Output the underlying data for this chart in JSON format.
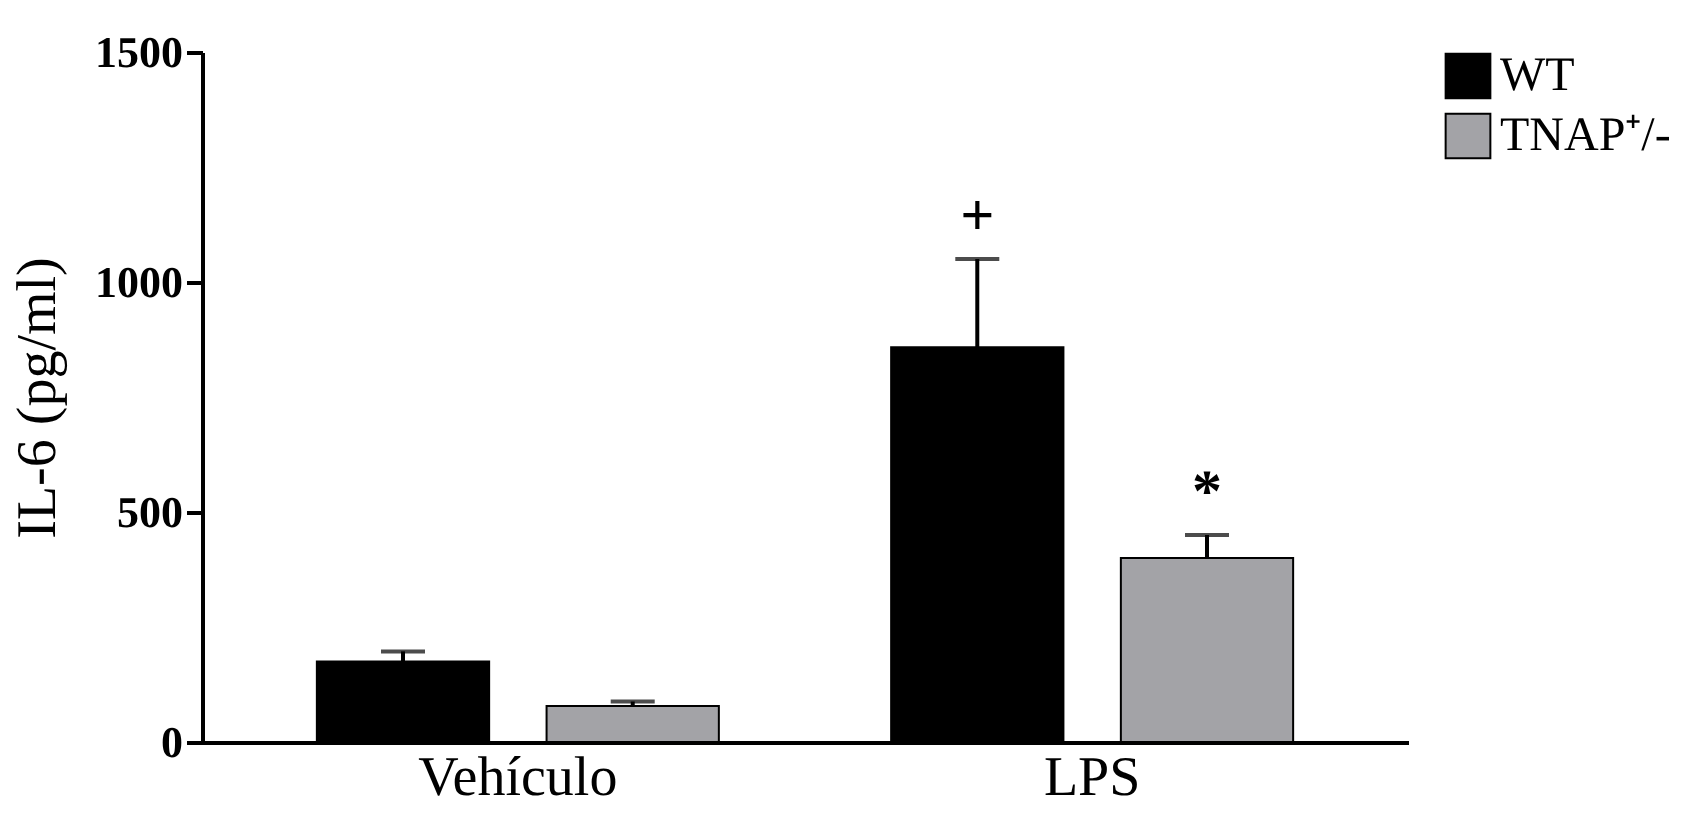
{
  "chart_data": {
    "type": "bar",
    "ylabel": "IL-6 (pg/ml)",
    "categories": [
      "Vehículo",
      "LPS"
    ],
    "series": [
      {
        "name": "WT",
        "color": "#000000",
        "values": [
          175,
          858
        ],
        "errors": [
          [
            175,
            197
          ],
          [
            858,
            1050
          ]
        ]
      },
      {
        "name": "TNAP⁺/-",
        "color": "#a3a3a7",
        "values": [
          78,
          400
        ],
        "errors": [
          [
            78,
            88
          ],
          [
            400,
            450
          ]
        ]
      }
    ],
    "ylim": [
      0,
      1500
    ],
    "yticks": [
      0,
      500,
      1000,
      1500
    ],
    "grid": false,
    "legend": "top right",
    "annotations": [
      "+",
      "*"
    ]
  }
}
